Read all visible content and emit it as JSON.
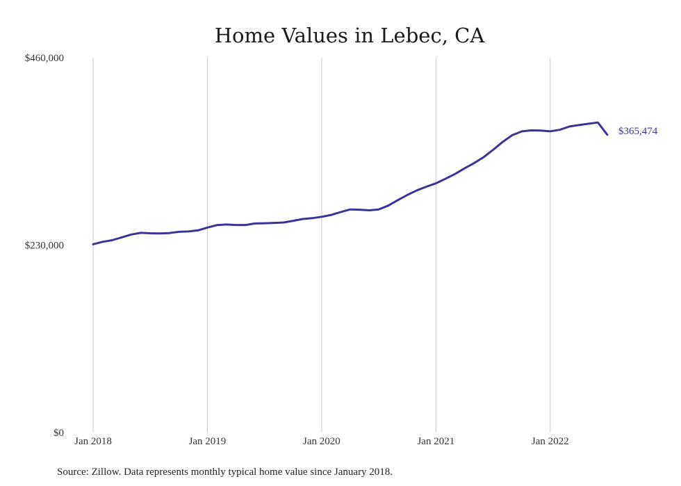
{
  "chart_data": {
    "type": "line",
    "title": "Home Values in Lebec, CA",
    "xlabel": "",
    "ylabel": "",
    "ylim": [
      0,
      460000
    ],
    "y_ticks": [
      {
        "value": 0,
        "label": "$0"
      },
      {
        "value": 230000,
        "label": "$230,000"
      },
      {
        "value": 460000,
        "label": "$460,000"
      }
    ],
    "x_ticks": [
      {
        "value": "2018-01",
        "label": "Jan 2018"
      },
      {
        "value": "2019-01",
        "label": "Jan 2019"
      },
      {
        "value": "2020-01",
        "label": "Jan 2020"
      },
      {
        "value": "2021-01",
        "label": "Jan 2021"
      },
      {
        "value": "2022-01",
        "label": "Jan 2022"
      }
    ],
    "xlim": [
      "2018-01",
      "2022-07"
    ],
    "grid": "vertical",
    "color": "#3b3496",
    "end_label": "$365,474",
    "series": [
      {
        "x": [
          "2018-01",
          "2018-02",
          "2018-03",
          "2018-04",
          "2018-05",
          "2018-06",
          "2018-07",
          "2018-08",
          "2018-09",
          "2018-10",
          "2018-11",
          "2018-12",
          "2019-01",
          "2019-02",
          "2019-03",
          "2019-04",
          "2019-05",
          "2019-06",
          "2019-07",
          "2019-08",
          "2019-09",
          "2019-10",
          "2019-11",
          "2019-12",
          "2020-01",
          "2020-02",
          "2020-03",
          "2020-04",
          "2020-05",
          "2020-06",
          "2020-07",
          "2020-08",
          "2020-09",
          "2020-10",
          "2020-11",
          "2020-12",
          "2021-01",
          "2021-02",
          "2021-03",
          "2021-04",
          "2021-05",
          "2021-06",
          "2021-07",
          "2021-08",
          "2021-09",
          "2021-10",
          "2021-11",
          "2021-12",
          "2022-01",
          "2022-02",
          "2022-03",
          "2022-04",
          "2022-05",
          "2022-06",
          "2022-07"
        ],
        "values": [
          231000,
          234000,
          236000,
          239500,
          243000,
          245000,
          244500,
          244300,
          244800,
          246300,
          246700,
          248000,
          251500,
          254500,
          255300,
          254700,
          254700,
          256500,
          256800,
          257200,
          257700,
          259800,
          262000,
          263000,
          264700,
          267000,
          270500,
          273800,
          273400,
          272700,
          273800,
          278500,
          285200,
          291500,
          297200,
          301700,
          305800,
          311300,
          317200,
          324100,
          330500,
          337900,
          346900,
          356600,
          364800,
          369500,
          370800,
          370600,
          369600,
          371500,
          375500,
          377300,
          378900,
          380500,
          365474
        ]
      }
    ]
  },
  "source_note": "Source: Zillow. Data represents monthly typical home value since January 2018."
}
